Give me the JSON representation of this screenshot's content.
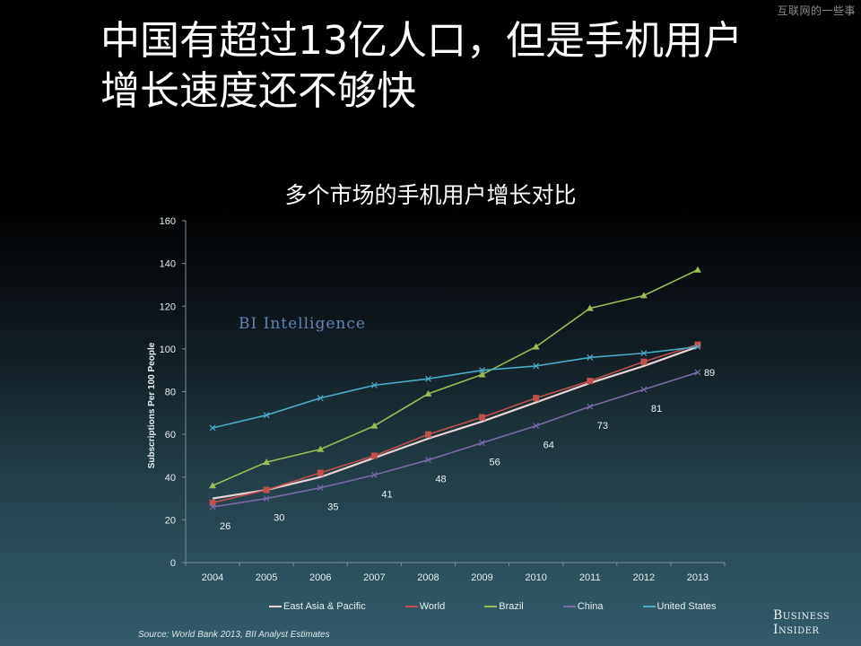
{
  "watermark": "互联网的一些事",
  "slide_title_line1": "中国有超过13亿人口，但是手机用户",
  "slide_title_line2": "增长速度还不够快",
  "chart_data": {
    "type": "line",
    "title": "多个市场的手机用户增长对比",
    "xlabel": "",
    "ylabel": "Subscriptions Per 100 People",
    "ylim": [
      0,
      160
    ],
    "yticks": [
      "0",
      "20",
      "40",
      "60",
      "80",
      "100",
      "120",
      "140",
      "160"
    ],
    "categories": [
      "2004",
      "2005",
      "2006",
      "2007",
      "2008",
      "2009",
      "2010",
      "2011",
      "2012",
      "2013"
    ],
    "series": [
      {
        "name": "East Asia & Pacific",
        "color": "#e9d3d3",
        "marker": "none",
        "values": [
          30,
          34,
          40,
          49,
          58,
          66,
          75,
          84,
          92,
          101
        ]
      },
      {
        "name": "World",
        "color": "#c0504d",
        "marker": "square",
        "values": [
          28,
          34,
          42,
          50,
          60,
          68,
          77,
          85,
          94,
          102
        ]
      },
      {
        "name": "Brazil",
        "color": "#9bbb59",
        "marker": "triangle",
        "values": [
          36,
          47,
          53,
          64,
          79,
          88,
          101,
          119,
          125,
          137
        ]
      },
      {
        "name": "China",
        "color": "#7b6aa6",
        "marker": "x",
        "values": [
          26,
          30,
          35,
          41,
          48,
          56,
          64,
          73,
          81,
          89
        ],
        "data_labels": [
          "26",
          "30",
          "35",
          "41",
          "48",
          "56",
          "64",
          "73",
          "81",
          "89"
        ]
      },
      {
        "name": "United States",
        "color": "#4aacc6",
        "marker": "x",
        "values": [
          63,
          69,
          77,
          83,
          86,
          90,
          92,
          96,
          98,
          101
        ]
      }
    ],
    "grid": false,
    "legend_position": "bottom",
    "watermark_text": "BI Intelligence"
  },
  "footer": {
    "source": "Source: World Bank 2013, BII Analyst Estimates",
    "brand_line1": "Business",
    "brand_line2": "Insider"
  }
}
